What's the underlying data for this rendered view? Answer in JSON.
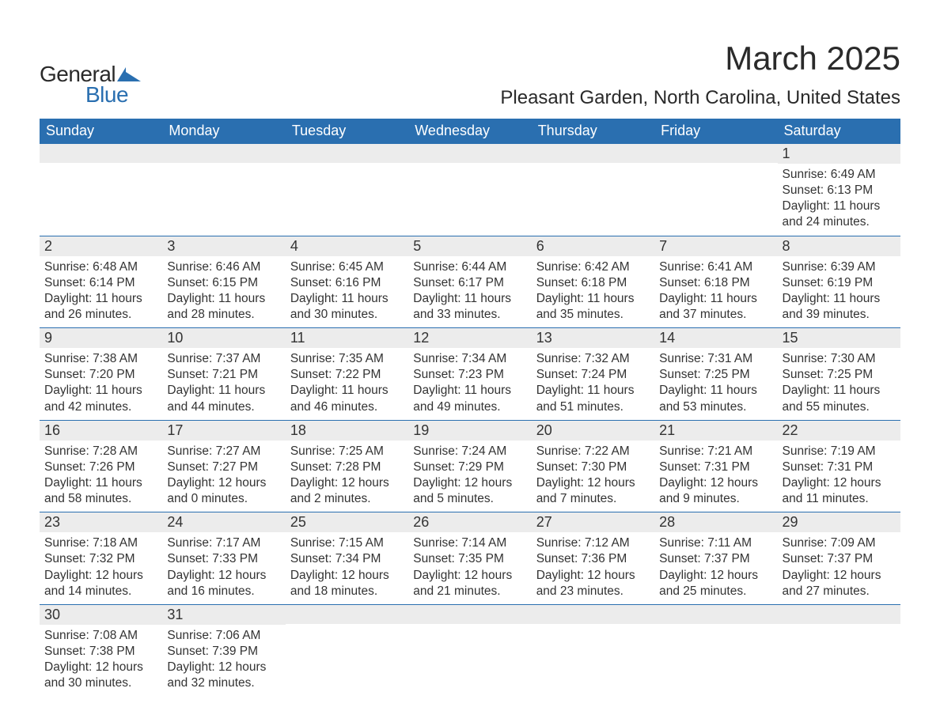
{
  "brand": {
    "word1": "General",
    "word2": "Blue",
    "mark_color": "#2a6fb0",
    "text_color": "#2a2a2a"
  },
  "title": "March 2025",
  "location": "Pleasant Garden, North Carolina, United States",
  "colors": {
    "header_bg": "#2a6fb0",
    "header_text": "#ffffff",
    "daynum_bg": "#ececec",
    "row_border": "#2a6fb0",
    "body_text": "#333333",
    "page_bg": "#ffffff"
  },
  "day_headers": [
    "Sunday",
    "Monday",
    "Tuesday",
    "Wednesday",
    "Thursday",
    "Friday",
    "Saturday"
  ],
  "weeks": [
    [
      null,
      null,
      null,
      null,
      null,
      null,
      {
        "n": "1",
        "sunrise": "Sunrise: 6:49 AM",
        "sunset": "Sunset: 6:13 PM",
        "day1": "Daylight: 11 hours",
        "day2": "and 24 minutes."
      }
    ],
    [
      {
        "n": "2",
        "sunrise": "Sunrise: 6:48 AM",
        "sunset": "Sunset: 6:14 PM",
        "day1": "Daylight: 11 hours",
        "day2": "and 26 minutes."
      },
      {
        "n": "3",
        "sunrise": "Sunrise: 6:46 AM",
        "sunset": "Sunset: 6:15 PM",
        "day1": "Daylight: 11 hours",
        "day2": "and 28 minutes."
      },
      {
        "n": "4",
        "sunrise": "Sunrise: 6:45 AM",
        "sunset": "Sunset: 6:16 PM",
        "day1": "Daylight: 11 hours",
        "day2": "and 30 minutes."
      },
      {
        "n": "5",
        "sunrise": "Sunrise: 6:44 AM",
        "sunset": "Sunset: 6:17 PM",
        "day1": "Daylight: 11 hours",
        "day2": "and 33 minutes."
      },
      {
        "n": "6",
        "sunrise": "Sunrise: 6:42 AM",
        "sunset": "Sunset: 6:18 PM",
        "day1": "Daylight: 11 hours",
        "day2": "and 35 minutes."
      },
      {
        "n": "7",
        "sunrise": "Sunrise: 6:41 AM",
        "sunset": "Sunset: 6:18 PM",
        "day1": "Daylight: 11 hours",
        "day2": "and 37 minutes."
      },
      {
        "n": "8",
        "sunrise": "Sunrise: 6:39 AM",
        "sunset": "Sunset: 6:19 PM",
        "day1": "Daylight: 11 hours",
        "day2": "and 39 minutes."
      }
    ],
    [
      {
        "n": "9",
        "sunrise": "Sunrise: 7:38 AM",
        "sunset": "Sunset: 7:20 PM",
        "day1": "Daylight: 11 hours",
        "day2": "and 42 minutes."
      },
      {
        "n": "10",
        "sunrise": "Sunrise: 7:37 AM",
        "sunset": "Sunset: 7:21 PM",
        "day1": "Daylight: 11 hours",
        "day2": "and 44 minutes."
      },
      {
        "n": "11",
        "sunrise": "Sunrise: 7:35 AM",
        "sunset": "Sunset: 7:22 PM",
        "day1": "Daylight: 11 hours",
        "day2": "and 46 minutes."
      },
      {
        "n": "12",
        "sunrise": "Sunrise: 7:34 AM",
        "sunset": "Sunset: 7:23 PM",
        "day1": "Daylight: 11 hours",
        "day2": "and 49 minutes."
      },
      {
        "n": "13",
        "sunrise": "Sunrise: 7:32 AM",
        "sunset": "Sunset: 7:24 PM",
        "day1": "Daylight: 11 hours",
        "day2": "and 51 minutes."
      },
      {
        "n": "14",
        "sunrise": "Sunrise: 7:31 AM",
        "sunset": "Sunset: 7:25 PM",
        "day1": "Daylight: 11 hours",
        "day2": "and 53 minutes."
      },
      {
        "n": "15",
        "sunrise": "Sunrise: 7:30 AM",
        "sunset": "Sunset: 7:25 PM",
        "day1": "Daylight: 11 hours",
        "day2": "and 55 minutes."
      }
    ],
    [
      {
        "n": "16",
        "sunrise": "Sunrise: 7:28 AM",
        "sunset": "Sunset: 7:26 PM",
        "day1": "Daylight: 11 hours",
        "day2": "and 58 minutes."
      },
      {
        "n": "17",
        "sunrise": "Sunrise: 7:27 AM",
        "sunset": "Sunset: 7:27 PM",
        "day1": "Daylight: 12 hours",
        "day2": "and 0 minutes."
      },
      {
        "n": "18",
        "sunrise": "Sunrise: 7:25 AM",
        "sunset": "Sunset: 7:28 PM",
        "day1": "Daylight: 12 hours",
        "day2": "and 2 minutes."
      },
      {
        "n": "19",
        "sunrise": "Sunrise: 7:24 AM",
        "sunset": "Sunset: 7:29 PM",
        "day1": "Daylight: 12 hours",
        "day2": "and 5 minutes."
      },
      {
        "n": "20",
        "sunrise": "Sunrise: 7:22 AM",
        "sunset": "Sunset: 7:30 PM",
        "day1": "Daylight: 12 hours",
        "day2": "and 7 minutes."
      },
      {
        "n": "21",
        "sunrise": "Sunrise: 7:21 AM",
        "sunset": "Sunset: 7:31 PM",
        "day1": "Daylight: 12 hours",
        "day2": "and 9 minutes."
      },
      {
        "n": "22",
        "sunrise": "Sunrise: 7:19 AM",
        "sunset": "Sunset: 7:31 PM",
        "day1": "Daylight: 12 hours",
        "day2": "and 11 minutes."
      }
    ],
    [
      {
        "n": "23",
        "sunrise": "Sunrise: 7:18 AM",
        "sunset": "Sunset: 7:32 PM",
        "day1": "Daylight: 12 hours",
        "day2": "and 14 minutes."
      },
      {
        "n": "24",
        "sunrise": "Sunrise: 7:17 AM",
        "sunset": "Sunset: 7:33 PM",
        "day1": "Daylight: 12 hours",
        "day2": "and 16 minutes."
      },
      {
        "n": "25",
        "sunrise": "Sunrise: 7:15 AM",
        "sunset": "Sunset: 7:34 PM",
        "day1": "Daylight: 12 hours",
        "day2": "and 18 minutes."
      },
      {
        "n": "26",
        "sunrise": "Sunrise: 7:14 AM",
        "sunset": "Sunset: 7:35 PM",
        "day1": "Daylight: 12 hours",
        "day2": "and 21 minutes."
      },
      {
        "n": "27",
        "sunrise": "Sunrise: 7:12 AM",
        "sunset": "Sunset: 7:36 PM",
        "day1": "Daylight: 12 hours",
        "day2": "and 23 minutes."
      },
      {
        "n": "28",
        "sunrise": "Sunrise: 7:11 AM",
        "sunset": "Sunset: 7:37 PM",
        "day1": "Daylight: 12 hours",
        "day2": "and 25 minutes."
      },
      {
        "n": "29",
        "sunrise": "Sunrise: 7:09 AM",
        "sunset": "Sunset: 7:37 PM",
        "day1": "Daylight: 12 hours",
        "day2": "and 27 minutes."
      }
    ],
    [
      {
        "n": "30",
        "sunrise": "Sunrise: 7:08 AM",
        "sunset": "Sunset: 7:38 PM",
        "day1": "Daylight: 12 hours",
        "day2": "and 30 minutes."
      },
      {
        "n": "31",
        "sunrise": "Sunrise: 7:06 AM",
        "sunset": "Sunset: 7:39 PM",
        "day1": "Daylight: 12 hours",
        "day2": "and 32 minutes."
      },
      null,
      null,
      null,
      null,
      null
    ]
  ]
}
